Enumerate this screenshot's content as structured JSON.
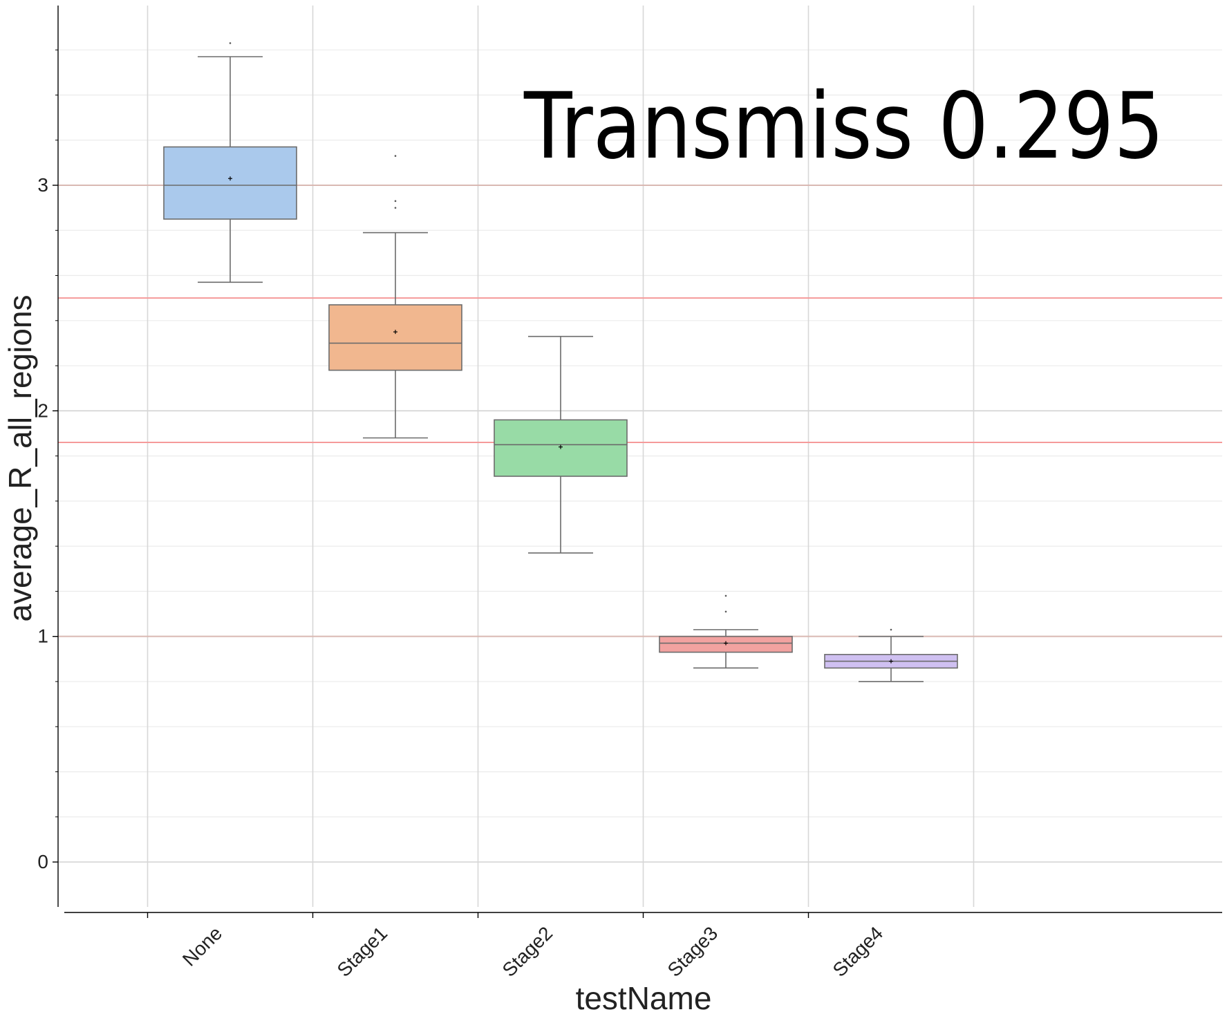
{
  "chart_data": {
    "type": "box",
    "title": "",
    "annotation": "Transmiss 0.295",
    "xlabel": "testName",
    "ylabel": "average_R_all_regions",
    "categories": [
      "None",
      "Stage1",
      "Stage2",
      "Stage3",
      "Stage4"
    ],
    "ylim": [
      -0.2,
      3.8
    ],
    "yticks": [
      {
        "value": 0,
        "label": "0"
      },
      {
        "value": 1,
        "label": "1"
      },
      {
        "value": 2,
        "label": "2"
      },
      {
        "value": 3,
        "label": "3"
      }
    ],
    "grid": true,
    "reference_lines": [
      {
        "value": 3.0,
        "color": "#d9b8b2"
      },
      {
        "value": 2.5,
        "color": "#f59a9a"
      },
      {
        "value": 1.86,
        "color": "#f59a9a"
      },
      {
        "value": 1.0,
        "color": "#d9b8b2"
      }
    ],
    "boxes": [
      {
        "category": "None",
        "whisker_low": 2.57,
        "q1": 2.85,
        "median": 3.0,
        "q3": 3.17,
        "whisker_high": 3.57,
        "mean": 3.03,
        "outliers": [
          3.63
        ],
        "color": "#aac9ec"
      },
      {
        "category": "Stage1",
        "whisker_low": 1.88,
        "q1": 2.18,
        "median": 2.3,
        "q3": 2.47,
        "whisker_high": 2.79,
        "mean": 2.35,
        "outliers": [
          3.13,
          2.93,
          2.9
        ],
        "color": "#f1b78f"
      },
      {
        "category": "Stage2",
        "whisker_low": 1.37,
        "q1": 1.71,
        "median": 1.85,
        "q3": 1.96,
        "whisker_high": 2.33,
        "mean": 1.84,
        "outliers": [],
        "color": "#98dba6"
      },
      {
        "category": "Stage3",
        "whisker_low": 0.86,
        "q1": 0.93,
        "median": 0.97,
        "q3": 1.0,
        "whisker_high": 1.03,
        "mean": 0.97,
        "outliers": [
          1.18,
          1.11
        ],
        "color": "#f2a2a0"
      },
      {
        "category": "Stage4",
        "whisker_low": 0.8,
        "q1": 0.86,
        "median": 0.89,
        "q3": 0.92,
        "whisker_high": 1.0,
        "mean": 0.89,
        "outliers": [
          1.03
        ],
        "color": "#cfc0f1"
      }
    ]
  }
}
